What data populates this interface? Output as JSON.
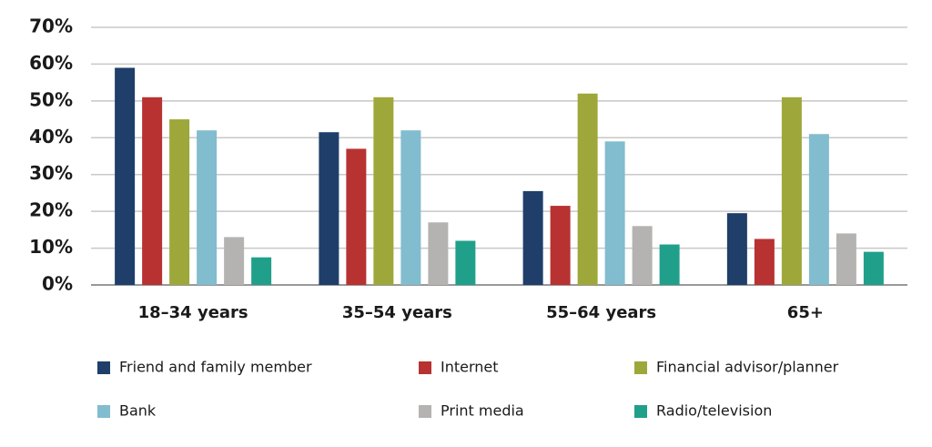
{
  "chart_data": {
    "type": "bar",
    "categories": [
      "18–34 years",
      "35–54 years",
      "55–64 years",
      "65+"
    ],
    "series": [
      {
        "name": "Friend and family member",
        "color": "#1f3f6a",
        "values": [
          59,
          41.5,
          25.5,
          19.5
        ]
      },
      {
        "name": "Internet",
        "color": "#b83232",
        "values": [
          51,
          37,
          21.5,
          12.5
        ]
      },
      {
        "name": "Financial advisor/planner",
        "color": "#9ea83a",
        "values": [
          45,
          51,
          52,
          51
        ]
      },
      {
        "name": "Bank",
        "color": "#82bccf",
        "values": [
          42,
          42,
          39,
          41
        ]
      },
      {
        "name": "Print media",
        "color": "#b5b3b1",
        "values": [
          13,
          17,
          16,
          14
        ]
      },
      {
        "name": "Radio/television",
        "color": "#20a08a",
        "values": [
          7.5,
          12,
          11,
          9
        ]
      }
    ],
    "ylim": [
      0,
      70
    ],
    "yticks": [
      {
        "value": 0,
        "label": "0%"
      },
      {
        "value": 10,
        "label": "10%"
      },
      {
        "value": 20,
        "label": "20%"
      },
      {
        "value": 30,
        "label": "30%"
      },
      {
        "value": 40,
        "label": "40%"
      },
      {
        "value": 50,
        "label": "50%"
      },
      {
        "value": 60,
        "label": "60%"
      },
      {
        "value": 70,
        "label": "70%"
      }
    ],
    "grid": true
  }
}
